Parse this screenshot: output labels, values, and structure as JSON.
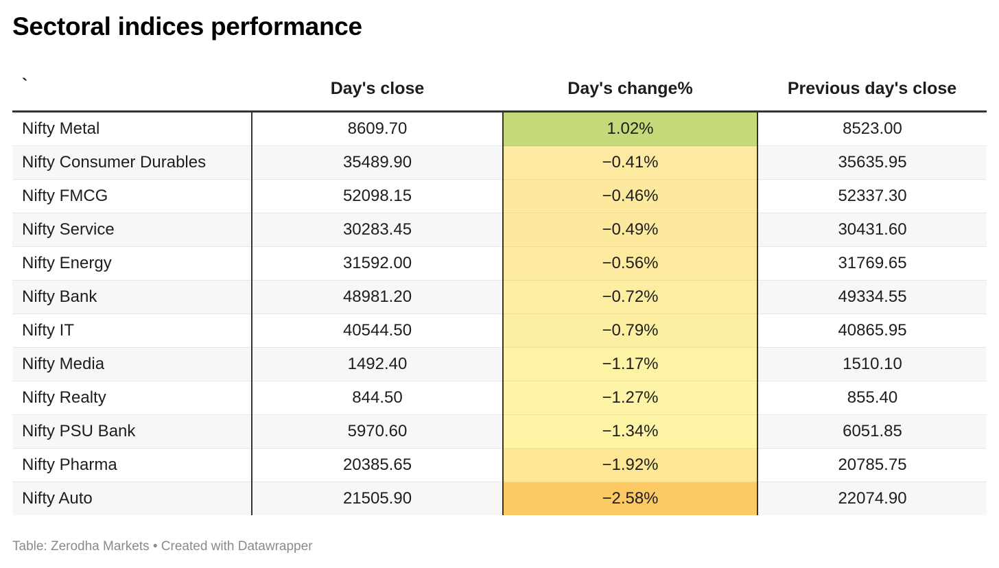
{
  "title": "Sectoral indices performance",
  "footer": "Table: Zerodha Markets • Created with Datawrapper",
  "chart_data": {
    "type": "table",
    "columns": [
      "`",
      "Day's close",
      "Day's change%",
      "Previous day's close"
    ],
    "rows": [
      {
        "name": "Nifty Metal",
        "close": "8609.70",
        "change": "1.02%",
        "prev": "8523.00",
        "change_value": 1.02
      },
      {
        "name": "Nifty Consumer Durables",
        "close": "35489.90",
        "change": "−0.41%",
        "prev": "35635.95",
        "change_value": -0.41
      },
      {
        "name": "Nifty FMCG",
        "close": "52098.15",
        "change": "−0.46%",
        "prev": "52337.30",
        "change_value": -0.46
      },
      {
        "name": "Nifty Service",
        "close": "30283.45",
        "change": "−0.49%",
        "prev": "30431.60",
        "change_value": -0.49
      },
      {
        "name": "Nifty Energy",
        "close": "31592.00",
        "change": "−0.56%",
        "prev": "31769.65",
        "change_value": -0.56
      },
      {
        "name": "Nifty Bank",
        "close": "48981.20",
        "change": "−0.72%",
        "prev": "49334.55",
        "change_value": -0.72
      },
      {
        "name": "Nifty IT",
        "close": "40544.50",
        "change": "−0.79%",
        "prev": "40865.95",
        "change_value": -0.79
      },
      {
        "name": "Nifty Media",
        "close": "1492.40",
        "change": "−1.17%",
        "prev": "1510.10",
        "change_value": -1.17
      },
      {
        "name": "Nifty Realty",
        "close": "844.50",
        "change": "−1.27%",
        "prev": "855.40",
        "change_value": -1.27
      },
      {
        "name": "Nifty PSU Bank",
        "close": "5970.60",
        "change": "−1.34%",
        "prev": "6051.85",
        "change_value": -1.34
      },
      {
        "name": "Nifty Pharma",
        "close": "20385.65",
        "change": "−1.92%",
        "prev": "20785.75",
        "change_value": -1.92
      },
      {
        "name": "Nifty Auto",
        "close": "21505.90",
        "change": "−2.58%",
        "prev": "22074.90",
        "change_value": -2.58
      }
    ],
    "change_colors": [
      "#c4da7a",
      "#fde99f",
      "#fde99e",
      "#fde99e",
      "#fdea9f",
      "#fdeda1",
      "#fdefa2",
      "#fdf3a4",
      "#fdf4a5",
      "#fdf5a5",
      "#fde795",
      "#fdc965"
    ]
  }
}
